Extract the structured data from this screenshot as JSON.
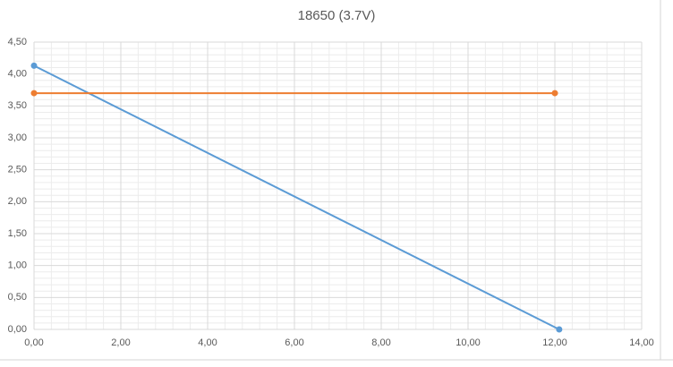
{
  "chart_data": {
    "type": "scatter",
    "title": "18650 (3.7V)",
    "series": [
      {
        "color": "#5b9bd5",
        "x": [
          0,
          12.1
        ],
        "values": [
          4.13,
          0
        ]
      },
      {
        "color": "#ed7d31",
        "x": [
          0,
          12.0
        ],
        "values": [
          3.7,
          3.7
        ]
      }
    ],
    "xlim": [
      0,
      14
    ],
    "ylim": [
      0,
      4.5
    ],
    "xticks": [
      {
        "value": 0,
        "label": "0,00"
      },
      {
        "value": 2,
        "label": "2,00"
      },
      {
        "value": 4,
        "label": "4,00"
      },
      {
        "value": 6,
        "label": "6,00"
      },
      {
        "value": 8,
        "label": "8,00"
      },
      {
        "value": 10,
        "label": "10,00"
      },
      {
        "value": 12,
        "label": "12,00"
      },
      {
        "value": 14,
        "label": "14,00"
      }
    ],
    "yticks": [
      {
        "value": 0,
        "label": "0,00"
      },
      {
        "value": 0.5,
        "label": "0,50"
      },
      {
        "value": 1,
        "label": "1,00"
      },
      {
        "value": 1.5,
        "label": "1,50"
      },
      {
        "value": 2,
        "label": "2,00"
      },
      {
        "value": 2.5,
        "label": "2,50"
      },
      {
        "value": 3,
        "label": "3,00"
      },
      {
        "value": 3.5,
        "label": "3,50"
      },
      {
        "value": 4,
        "label": "4,00"
      },
      {
        "value": 4.5,
        "label": "4,50"
      }
    ],
    "grid": true,
    "minor_grid": true
  }
}
